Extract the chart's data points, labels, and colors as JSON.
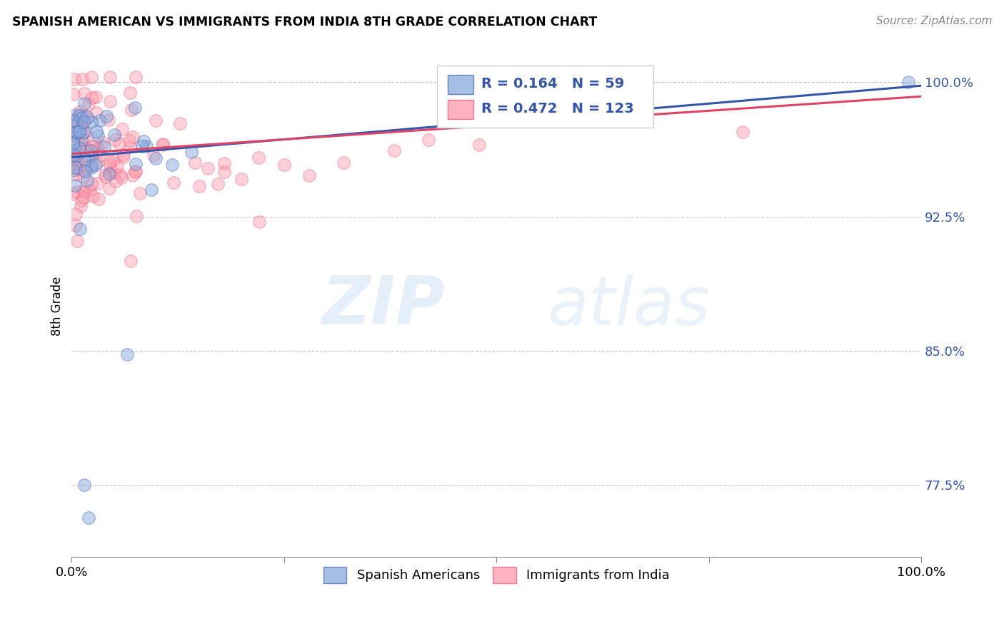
{
  "title": "SPANISH AMERICAN VS IMMIGRANTS FROM INDIA 8TH GRADE CORRELATION CHART",
  "source": "Source: ZipAtlas.com",
  "ylabel": "8th Grade",
  "xlim": [
    0.0,
    1.0
  ],
  "ylim": [
    0.735,
    1.015
  ],
  "yticks": [
    0.775,
    0.85,
    0.925,
    1.0
  ],
  "ytick_labels": [
    "77.5%",
    "85.0%",
    "92.5%",
    "100.0%"
  ],
  "xtick_positions": [
    0.0,
    0.25,
    0.5,
    0.75,
    1.0
  ],
  "xtick_labels": [
    "0.0%",
    "",
    "",
    "",
    "100.0%"
  ],
  "legend_label1": "Spanish Americans",
  "legend_label2": "Immigrants from India",
  "r1": 0.164,
  "n1": 59,
  "r2": 0.472,
  "n2": 123,
  "color_blue": "#88AADD",
  "color_pink": "#FF99AA",
  "color_blue_edge": "#4466BB",
  "color_pink_edge": "#EE5577",
  "color_blue_line": "#3355AA",
  "color_pink_line": "#DD4466",
  "watermark_zip": "ZIP",
  "watermark_atlas": "atlas",
  "scatter_size": 160,
  "scatter_alpha": 0.45,
  "blue_line_start_y": 0.958,
  "blue_line_end_y": 0.998,
  "pink_line_start_y": 0.96,
  "pink_line_end_y": 0.992
}
